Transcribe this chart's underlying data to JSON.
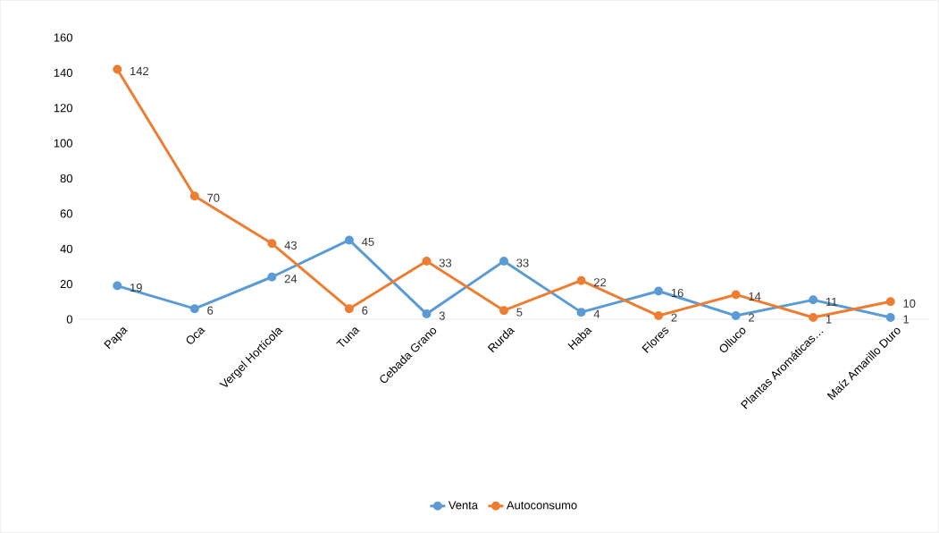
{
  "chart_data": {
    "type": "line",
    "categories": [
      "Papa",
      "Oca",
      "Vergel Hortícola",
      "Tuna",
      "Cebada Grano",
      "Rurda",
      "Haba",
      "Flores",
      "Olluco",
      "Plantas Aromáticas…",
      "Maíz Amarillo Duro"
    ],
    "series": [
      {
        "name": "Venta",
        "color": "#5b9bd5",
        "values": [
          19,
          6,
          24,
          45,
          3,
          33,
          4,
          16,
          2,
          11,
          1
        ]
      },
      {
        "name": "Autoconsumo",
        "color": "#ed7d31",
        "values": [
          142,
          70,
          43,
          6,
          33,
          5,
          22,
          2,
          14,
          1,
          10
        ]
      }
    ],
    "ylim": [
      0,
      160
    ],
    "yticks": [
      0,
      20,
      40,
      60,
      80,
      100,
      120,
      140,
      160
    ],
    "grid": false,
    "legend": "bottom",
    "marker": "circle",
    "line_style": "solid",
    "data_labels": true
  }
}
